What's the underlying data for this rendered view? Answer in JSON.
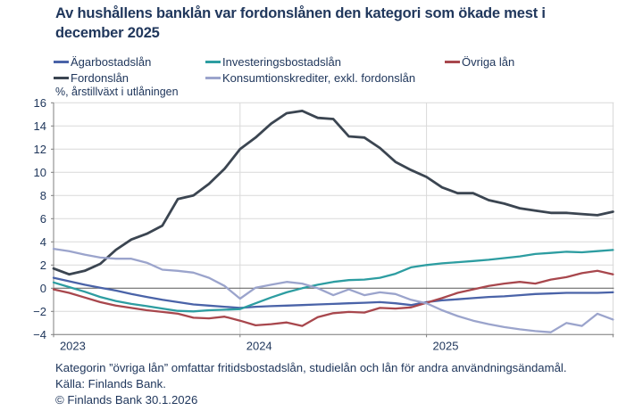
{
  "title": "Av hushållens banklån var fordonslånen den kategori som ökade mest i december 2025",
  "unit_label": "%, årstillväxt i utlåningen",
  "legend": {
    "items": [
      {
        "label": "Ägarbostadslån",
        "color": "#4a63a8"
      },
      {
        "label": "Investeringsbostadslån",
        "color": "#2d9da1"
      },
      {
        "label": "Övriga lån",
        "color": "#a8474d"
      },
      {
        "label": "Fordonslån",
        "color": "#3b4551"
      },
      {
        "label": "Konsumtionskrediter, exkl. fordonslån",
        "color": "#9ba4cc"
      }
    ]
  },
  "axes": {
    "y_tick_labels": [
      "16",
      "14",
      "12",
      "10",
      "8",
      "6",
      "4",
      "2",
      "0",
      "−2",
      "−4"
    ],
    "x_tick_labels": [
      "2023",
      "2024",
      "2025"
    ]
  },
  "colors": {
    "text": "#20375c",
    "grid": "#d9d9d9",
    "zero_line": "#595959",
    "axis": "#7f7f7f",
    "background": "#ffffff"
  },
  "footer": {
    "footnote": "Kategorin ”övriga lån” omfattar fritidsbostadslån, studielån och lån för andra användningsändamål.",
    "source": "Källa: Finlands Bank.",
    "copyright": "© Finlands Bank 30.1.2026"
  },
  "chart_data": {
    "type": "line",
    "title": "Av hushållens banklån var fordonslånen den kategori som ökade mest i december 2025",
    "ylabel": "%, årstillväxt i utlåningen",
    "ylim": [
      -4,
      16
    ],
    "ytick_step": 2,
    "grid": true,
    "legend_position": "top",
    "x_frequency": "monthly",
    "x_start": "2022-12",
    "x_end": "2025-12",
    "x_tick_labels": [
      "2023",
      "2024",
      "2025"
    ],
    "series": [
      {
        "name": "Ägarbostadslån",
        "color": "#4a63a8",
        "width": 2.3,
        "values": [
          0.9,
          0.6,
          0.3,
          0.05,
          -0.2,
          -0.5,
          -0.75,
          -1.0,
          -1.2,
          -1.4,
          -1.5,
          -1.6,
          -1.7,
          -1.6,
          -1.55,
          -1.5,
          -1.45,
          -1.4,
          -1.35,
          -1.3,
          -1.25,
          -1.2,
          -1.3,
          -1.45,
          -1.2,
          -1.05,
          -0.95,
          -0.85,
          -0.75,
          -0.7,
          -0.6,
          -0.5,
          -0.45,
          -0.4,
          -0.4,
          -0.4,
          -0.35
        ]
      },
      {
        "name": "Investeringsbostadslån",
        "color": "#2d9da1",
        "width": 2.3,
        "values": [
          0.5,
          0.1,
          -0.3,
          -0.75,
          -1.1,
          -1.35,
          -1.55,
          -1.75,
          -1.95,
          -2.0,
          -1.9,
          -1.85,
          -1.8,
          -1.3,
          -0.8,
          -0.35,
          0.0,
          0.3,
          0.55,
          0.7,
          0.75,
          0.9,
          1.25,
          1.8,
          2.0,
          2.15,
          2.25,
          2.35,
          2.45,
          2.6,
          2.75,
          2.95,
          3.05,
          3.15,
          3.1,
          3.2,
          3.3
        ]
      },
      {
        "name": "Övriga lån",
        "color": "#a8474d",
        "width": 2.3,
        "values": [
          -0.1,
          -0.4,
          -0.8,
          -1.2,
          -1.5,
          -1.7,
          -1.9,
          -2.05,
          -2.2,
          -2.55,
          -2.6,
          -2.45,
          -2.8,
          -3.2,
          -3.1,
          -2.95,
          -3.25,
          -2.5,
          -2.15,
          -2.05,
          -2.1,
          -1.7,
          -1.75,
          -1.65,
          -1.25,
          -0.85,
          -0.4,
          -0.1,
          0.2,
          0.4,
          0.55,
          0.4,
          0.75,
          0.95,
          1.3,
          1.5,
          1.2
        ]
      },
      {
        "name": "Fordonslån",
        "color": "#3b4551",
        "width": 2.8,
        "values": [
          1.7,
          1.2,
          1.5,
          2.1,
          3.3,
          4.2,
          4.7,
          5.4,
          7.7,
          8.0,
          9.0,
          10.3,
          12.0,
          13.0,
          14.2,
          15.1,
          15.3,
          14.7,
          14.6,
          13.1,
          13.0,
          12.1,
          10.9,
          10.2,
          9.6,
          8.7,
          8.2,
          8.2,
          7.6,
          7.3,
          6.9,
          6.7,
          6.5,
          6.5,
          6.4,
          6.3,
          6.6
        ]
      },
      {
        "name": "Konsumtionskrediter, exkl. fordonslån",
        "color": "#9ba4cc",
        "width": 2.3,
        "values": [
          3.4,
          3.2,
          2.9,
          2.65,
          2.55,
          2.55,
          2.2,
          1.6,
          1.5,
          1.35,
          0.9,
          0.2,
          -0.9,
          0.05,
          0.3,
          0.55,
          0.4,
          0.0,
          -0.6,
          -0.1,
          -0.6,
          -0.35,
          -0.5,
          -1.0,
          -1.3,
          -1.9,
          -2.4,
          -2.8,
          -3.1,
          -3.35,
          -3.55,
          -3.7,
          -3.8,
          -3.0,
          -3.25,
          -2.2,
          -2.7
        ]
      }
    ]
  }
}
